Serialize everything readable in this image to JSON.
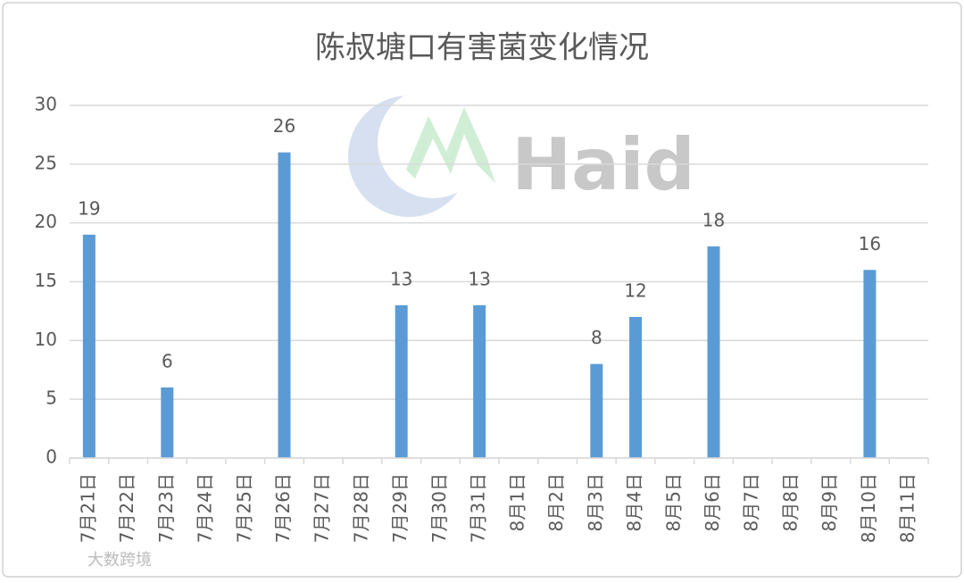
{
  "chart_data": {
    "type": "bar",
    "title": "陈叔塘口有害菌变化情况",
    "categories": [
      "7月21日",
      "7月22日",
      "7月23日",
      "7月24日",
      "7月25日",
      "7月26日",
      "7月27日",
      "7月28日",
      "7月29日",
      "7月30日",
      "7月31日",
      "8月1日",
      "8月2日",
      "8月3日",
      "8月4日",
      "8月5日",
      "8月6日",
      "8月7日",
      "8月8日",
      "8月9日",
      "8月10日",
      "8月11日"
    ],
    "values": [
      19,
      null,
      6,
      null,
      null,
      26,
      null,
      null,
      13,
      null,
      13,
      null,
      null,
      8,
      12,
      null,
      18,
      null,
      null,
      null,
      16,
      null
    ],
    "color": "#5b9bd5",
    "ylim": [
      0,
      30
    ],
    "yticks": [
      0,
      5,
      10,
      15,
      20,
      25,
      30
    ],
    "grid": true,
    "watermark": "Haid",
    "source_mark": "大数跨境"
  }
}
